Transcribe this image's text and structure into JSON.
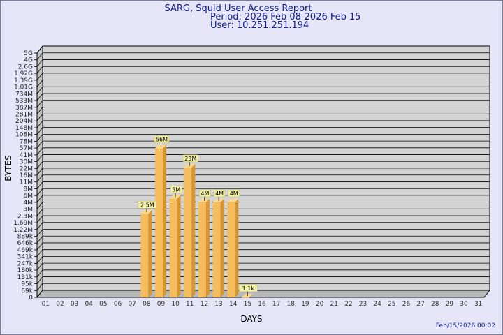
{
  "header": {
    "title": "SARG, Squid User Access Report",
    "period": "Period: 2026 Feb 08-2026 Feb 15",
    "user": "User: 10.251.251.194"
  },
  "footer": {
    "timestamp": "Feb/15/2026 00:02"
  },
  "colors": {
    "background": "#e6e6f8",
    "plot_face": "#d3d3d3",
    "bar_front": "#f5bd5e",
    "bar_side": "#d6952e",
    "bar_top": "#fbd98a",
    "label_bg": "#f3f0a8",
    "title": "#0c1d8a"
  },
  "chart_data": {
    "type": "bar",
    "xlabel": "DAYS",
    "ylabel": "BYTES",
    "y_scale": "log",
    "y_ticks": [
      "5G",
      "4G",
      "2.6G",
      "1.92G",
      "1.39G",
      "1.01G",
      "734M",
      "533M",
      "387M",
      "281M",
      "204M",
      "148M",
      "108M",
      "78M",
      "57M",
      "41M",
      "30M",
      "22M",
      "16M",
      "11M",
      "8M",
      "6M",
      "4M",
      "3M",
      "2.3M",
      "1.69M",
      "1.22M",
      "889k",
      "646k",
      "469k",
      "341k",
      "247k",
      "180k",
      "131k",
      "95k",
      "69k",
      "0"
    ],
    "categories": [
      "01",
      "02",
      "03",
      "04",
      "05",
      "06",
      "07",
      "08",
      "09",
      "10",
      "11",
      "12",
      "13",
      "14",
      "15",
      "16",
      "17",
      "18",
      "19",
      "20",
      "21",
      "22",
      "23",
      "24",
      "25",
      "26",
      "27",
      "28",
      "29",
      "30",
      "31"
    ],
    "values": [
      0,
      0,
      0,
      0,
      0,
      0,
      0,
      2500000,
      56000000,
      5000000,
      23000000,
      4000000,
      4000000,
      4000000,
      1100,
      0,
      0,
      0,
      0,
      0,
      0,
      0,
      0,
      0,
      0,
      0,
      0,
      0,
      0,
      0,
      0
    ],
    "data_labels": [
      "",
      "",
      "",
      "",
      "",
      "",
      "",
      "2.5M",
      "56M",
      "5M",
      "23M",
      "4M",
      "4M",
      "4M",
      "1.1k",
      "",
      "",
      "",
      "",
      "",
      "",
      "",
      "",
      "",
      "",
      "",
      "",
      "",
      "",
      "",
      ""
    ],
    "grid": true,
    "legend": "none"
  }
}
